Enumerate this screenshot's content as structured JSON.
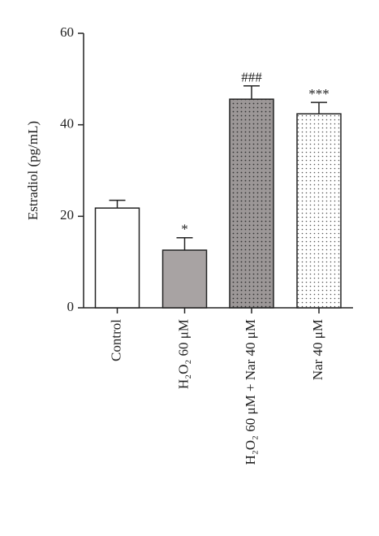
{
  "chart_data": {
    "type": "bar",
    "ylabel": "Estradiol (pg/mL)",
    "categories": [
      "Control",
      "H₂O₂ 60 μM",
      "H₂O₂ 60 μM + Nar 40 μM",
      "Nar 40 μM"
    ],
    "values": [
      21.8,
      12.6,
      45.6,
      42.4
    ],
    "errors": [
      1.7,
      2.7,
      2.9,
      2.5
    ],
    "annotations": [
      null,
      "*",
      "###",
      "***"
    ],
    "colors": [
      "#ffffff",
      "#a8a3a3",
      "#9c9797",
      "#ffffff"
    ],
    "patterns": [
      "none",
      "none",
      "dots",
      "dots"
    ],
    "ylim": [
      0,
      60
    ],
    "yticks": [
      0,
      20,
      40,
      60
    ]
  }
}
